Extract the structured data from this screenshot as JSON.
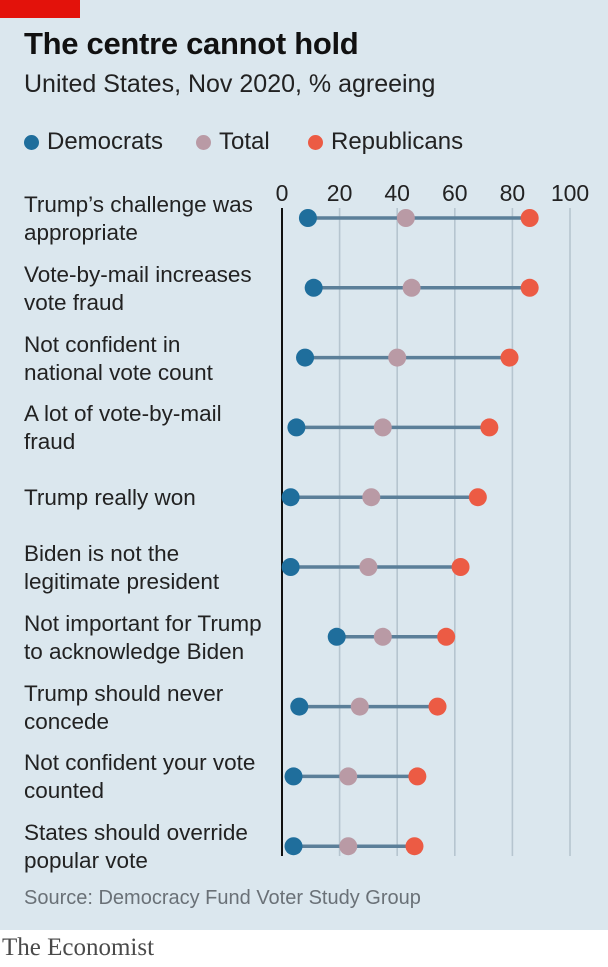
{
  "title": "The centre cannot hold",
  "subtitle": "United States, Nov 2020, % agreeing",
  "source": "Source: Democracy Fund Voter Study Group",
  "brand": "The Economist",
  "colors": {
    "democrats": "#1f6e9c",
    "total": "#b99aa5",
    "republicans": "#ec5b44",
    "connector": "#5b7f99",
    "grid": "#b6c5cf",
    "axis": "#111111",
    "background": "#dbe7ee"
  },
  "legend": [
    {
      "key": "democrats",
      "label": "Democrats"
    },
    {
      "key": "total",
      "label": "Total"
    },
    {
      "key": "republicans",
      "label": "Republicans"
    }
  ],
  "chart_data": {
    "type": "dot-range",
    "xlim": [
      0,
      100
    ],
    "xticks": [
      0,
      20,
      40,
      60,
      80,
      100
    ],
    "grid": true,
    "legend_position": "top",
    "categories": [
      [
        "Trump’s challenge was",
        "appropriate"
      ],
      [
        "Vote-by-mail increases",
        "vote fraud"
      ],
      [
        "Not confident in",
        "national vote count"
      ],
      [
        "A lot of vote-by-mail",
        "fraud"
      ],
      [
        "Trump really won"
      ],
      [
        "Biden is not the",
        "legitimate president"
      ],
      [
        "Not important for Trump",
        "to acknowledge Biden"
      ],
      [
        "Trump should never",
        "concede"
      ],
      [
        "Not confident your vote",
        "counted"
      ],
      [
        "States should override",
        "popular vote"
      ]
    ],
    "series": [
      {
        "key": "democrats",
        "name": "Democrats",
        "values": [
          9,
          11,
          8,
          5,
          3,
          3,
          19,
          6,
          4,
          4
        ]
      },
      {
        "key": "total",
        "name": "Total",
        "values": [
          43,
          45,
          40,
          35,
          31,
          30,
          35,
          27,
          23,
          23
        ]
      },
      {
        "key": "republicans",
        "name": "Republicans",
        "values": [
          86,
          86,
          79,
          72,
          68,
          62,
          57,
          54,
          47,
          46
        ]
      }
    ]
  }
}
